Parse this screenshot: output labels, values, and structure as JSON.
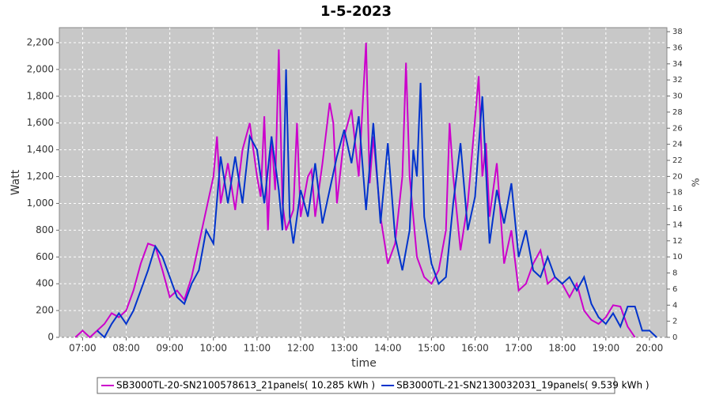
{
  "chart_data": {
    "type": "line",
    "title": "1-5-2023",
    "xlabel": "time",
    "ylabel": "Watt",
    "y2label": "%",
    "xlim": [
      "06:28",
      "20:24"
    ],
    "xticks": [
      "07:00",
      "08:00",
      "09:00",
      "10:00",
      "11:00",
      "12:00",
      "13:00",
      "14:00",
      "15:00",
      "16:00",
      "17:00",
      "18:00",
      "19:00",
      "20:00"
    ],
    "ylim": [
      0,
      2312
    ],
    "yticks": [
      0,
      {
        "value": 200,
        "label": "200"
      },
      400,
      600,
      800,
      {
        "value": 1000,
        "label": "1,000"
      },
      {
        "value": 1200,
        "label": "1,200"
      },
      {
        "value": 1400,
        "label": "1,400"
      },
      {
        "value": 1600,
        "label": "1,600"
      },
      {
        "value": 1800,
        "label": "1,800"
      },
      {
        "value": 2000,
        "label": "2,000"
      },
      {
        "value": 2200,
        "label": "2,200"
      }
    ],
    "y2lim": [
      0,
      38.5
    ],
    "y2ticks": [
      0,
      2,
      4,
      6,
      8,
      10,
      12,
      14,
      16,
      18,
      20,
      22,
      24,
      26,
      28,
      30,
      32,
      34,
      36,
      38
    ],
    "grid": true,
    "legend": "bottom",
    "series": [
      {
        "name": "SB3000TL-20-SN2100578613_21panels( 10.285 kWh )",
        "color": "#cc00cc",
        "x": [
          "06:50",
          "07:00",
          "07:10",
          "07:20",
          "07:30",
          "07:40",
          "07:50",
          "08:00",
          "08:10",
          "08:20",
          "08:30",
          "08:40",
          "08:50",
          "09:00",
          "09:10",
          "09:20",
          "09:30",
          "09:40",
          "09:50",
          "10:00",
          "10:05",
          "10:10",
          "10:20",
          "10:30",
          "10:40",
          "10:50",
          "11:00",
          "11:05",
          "11:10",
          "11:15",
          "11:20",
          "11:25",
          "11:30",
          "11:35",
          "11:40",
          "11:50",
          "11:55",
          "12:00",
          "12:10",
          "12:15",
          "12:20",
          "12:30",
          "12:40",
          "12:45",
          "12:50",
          "13:00",
          "13:10",
          "13:20",
          "13:30",
          "13:35",
          "13:40",
          "13:50",
          "14:00",
          "14:10",
          "14:20",
          "14:25",
          "14:30",
          "14:40",
          "14:50",
          "15:00",
          "15:10",
          "15:20",
          "15:25",
          "15:30",
          "15:40",
          "15:50",
          "16:05",
          "16:10",
          "16:15",
          "16:20",
          "16:30",
          "16:40",
          "16:50",
          "17:00",
          "17:10",
          "17:20",
          "17:30",
          "17:40",
          "17:50",
          "18:00",
          "18:10",
          "18:20",
          "18:30",
          "18:40",
          "18:50",
          "19:00",
          "19:10",
          "19:20",
          "19:30",
          "19:40"
        ],
        "values": [
          0,
          50,
          0,
          50,
          100,
          180,
          150,
          200,
          350,
          550,
          700,
          680,
          500,
          300,
          350,
          280,
          450,
          700,
          950,
          1200,
          1500,
          1000,
          1300,
          950,
          1400,
          1600,
          1200,
          1050,
          1650,
          800,
          1500,
          1100,
          2150,
          1000,
          800,
          950,
          1600,
          900,
          1200,
          1250,
          900,
          1300,
          1750,
          1600,
          1000,
          1500,
          1700,
          1200,
          2200,
          1150,
          1500,
          900,
          550,
          700,
          1200,
          2050,
          1200,
          600,
          450,
          400,
          500,
          800,
          1600,
          1200,
          650,
          1000,
          1950,
          1200,
          1450,
          900,
          1300,
          550,
          800,
          350,
          400,
          550,
          650,
          400,
          450,
          400,
          300,
          400,
          200,
          130,
          100,
          150,
          240,
          230,
          80,
          0
        ]
      },
      {
        "name": "SB3000TL-21-SN2130032031_19panels( 9.539 kWh )",
        "color": "#0033cc",
        "x": [
          "07:20",
          "07:30",
          "07:40",
          "07:50",
          "08:00",
          "08:10",
          "08:20",
          "08:30",
          "08:40",
          "08:50",
          "09:00",
          "09:10",
          "09:20",
          "09:30",
          "09:40",
          "09:50",
          "10:00",
          "10:10",
          "10:20",
          "10:30",
          "10:40",
          "10:50",
          "11:00",
          "11:10",
          "11:20",
          "11:30",
          "11:35",
          "11:40",
          "11:45",
          "11:50",
          "12:00",
          "12:10",
          "12:20",
          "12:30",
          "12:40",
          "12:50",
          "13:00",
          "13:10",
          "13:20",
          "13:30",
          "13:40",
          "13:50",
          "14:00",
          "14:10",
          "14:20",
          "14:30",
          "14:35",
          "14:40",
          "14:45",
          "14:50",
          "15:00",
          "15:10",
          "15:20",
          "15:30",
          "15:40",
          "15:50",
          "16:00",
          "16:10",
          "16:20",
          "16:30",
          "16:40",
          "16:50",
          "17:00",
          "17:10",
          "17:20",
          "17:30",
          "17:40",
          "17:50",
          "18:00",
          "18:10",
          "18:20",
          "18:30",
          "18:40",
          "18:50",
          "19:00",
          "19:10",
          "19:20",
          "19:30",
          "19:40",
          "19:50",
          "20:00",
          "20:10"
        ],
        "values": [
          50,
          0,
          100,
          180,
          100,
          200,
          350,
          500,
          680,
          600,
          450,
          300,
          250,
          400,
          500,
          800,
          700,
          1350,
          1000,
          1350,
          1000,
          1500,
          1400,
          1000,
          1500,
          1100,
          800,
          2000,
          900,
          700,
          1100,
          900,
          1300,
          850,
          1100,
          1350,
          1550,
          1300,
          1650,
          950,
          1600,
          850,
          1450,
          750,
          500,
          800,
          1400,
          1200,
          1900,
          900,
          550,
          400,
          450,
          1000,
          1450,
          800,
          1050,
          1800,
          700,
          1100,
          850,
          1150,
          600,
          800,
          500,
          450,
          600,
          450,
          400,
          450,
          350,
          450,
          250,
          150,
          100,
          180,
          80,
          230,
          230,
          50,
          50,
          0
        ]
      }
    ]
  }
}
